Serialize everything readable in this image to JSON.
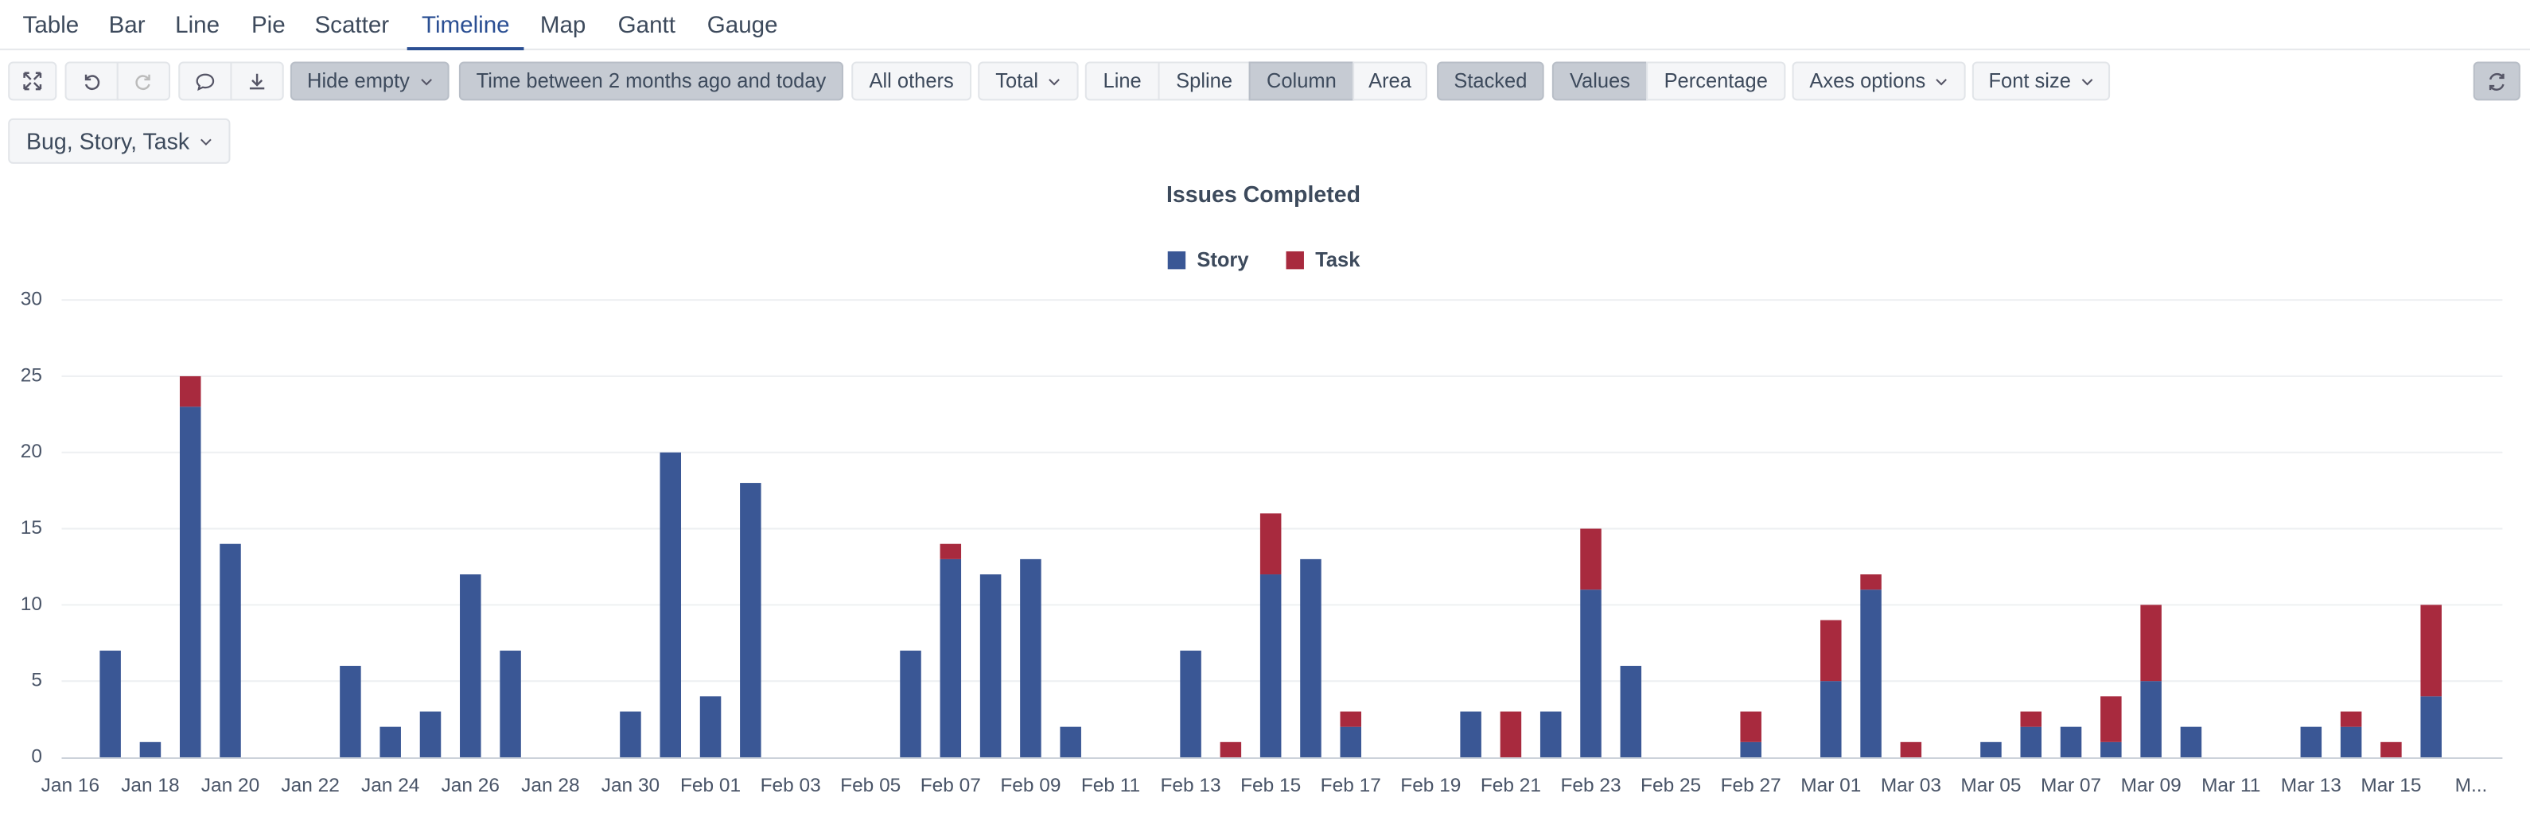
{
  "tabs": [
    "Table",
    "Bar",
    "Line",
    "Pie",
    "Scatter",
    "Timeline",
    "Map",
    "Gantt",
    "Gauge"
  ],
  "toolbar": {
    "hide_empty": "Hide empty",
    "time_filter": "Time between 2 months ago and today",
    "all_others": "All others",
    "total": "Total",
    "chart_types": [
      "Line",
      "Spline",
      "Column",
      "Area"
    ],
    "stacked": "Stacked",
    "modes": [
      "Values",
      "Percentage"
    ],
    "axes_options": "Axes options",
    "font_size": "Font size"
  },
  "filter": "Bug, Story, Task",
  "chart_data": {
    "type": "bar",
    "stacked": true,
    "title": "Issues Completed",
    "categories": [
      "Jan 16",
      null,
      "Jan 18",
      null,
      "Jan 20",
      null,
      "Jan 22",
      null,
      "Jan 24",
      null,
      "Jan 26",
      null,
      "Jan 28",
      null,
      "Jan 30",
      null,
      "Feb 01",
      null,
      "Feb 03",
      null,
      "Feb 05",
      null,
      "Feb 07",
      null,
      "Feb 09",
      null,
      "Feb 11",
      null,
      "Feb 13",
      null,
      "Feb 15",
      null,
      "Feb 17",
      null,
      "Feb 19",
      null,
      "Feb 21",
      null,
      "Feb 23",
      null,
      "Feb 25",
      null,
      "Feb 27",
      null,
      "Mar 01",
      null,
      "Mar 03",
      null,
      "Mar 05",
      null,
      "Mar 07",
      null,
      "Mar 09",
      null,
      "Mar 11",
      null,
      "Mar 13",
      null,
      "Mar 15",
      null,
      "M..."
    ],
    "series": [
      {
        "name": "Story",
        "color": "#3a5795",
        "values": [
          null,
          7,
          1,
          23,
          14,
          null,
          null,
          6,
          2,
          3,
          12,
          7,
          null,
          null,
          3,
          20,
          4,
          18,
          null,
          null,
          null,
          7,
          13,
          12,
          13,
          2,
          null,
          null,
          7,
          null,
          12,
          13,
          2,
          null,
          null,
          3,
          null,
          3,
          11,
          6,
          null,
          null,
          1,
          null,
          5,
          11,
          null,
          null,
          1,
          2,
          2,
          1,
          5,
          2,
          null,
          null,
          2,
          2,
          null,
          4,
          null
        ]
      },
      {
        "name": "Task",
        "color": "#a82a3e",
        "values": [
          null,
          null,
          null,
          2,
          null,
          null,
          null,
          null,
          null,
          null,
          null,
          null,
          null,
          null,
          null,
          null,
          null,
          null,
          null,
          null,
          null,
          null,
          1,
          null,
          null,
          null,
          null,
          null,
          null,
          1,
          4,
          null,
          1,
          null,
          null,
          null,
          3,
          null,
          4,
          null,
          null,
          null,
          2,
          null,
          4,
          1,
          1,
          null,
          null,
          1,
          null,
          3,
          5,
          null,
          null,
          null,
          null,
          1,
          1,
          6,
          null
        ]
      }
    ],
    "ylim": [
      0,
      30
    ],
    "yticks": [
      0,
      5,
      10,
      15,
      20,
      25,
      30
    ],
    "grid": true,
    "legend": "top"
  }
}
